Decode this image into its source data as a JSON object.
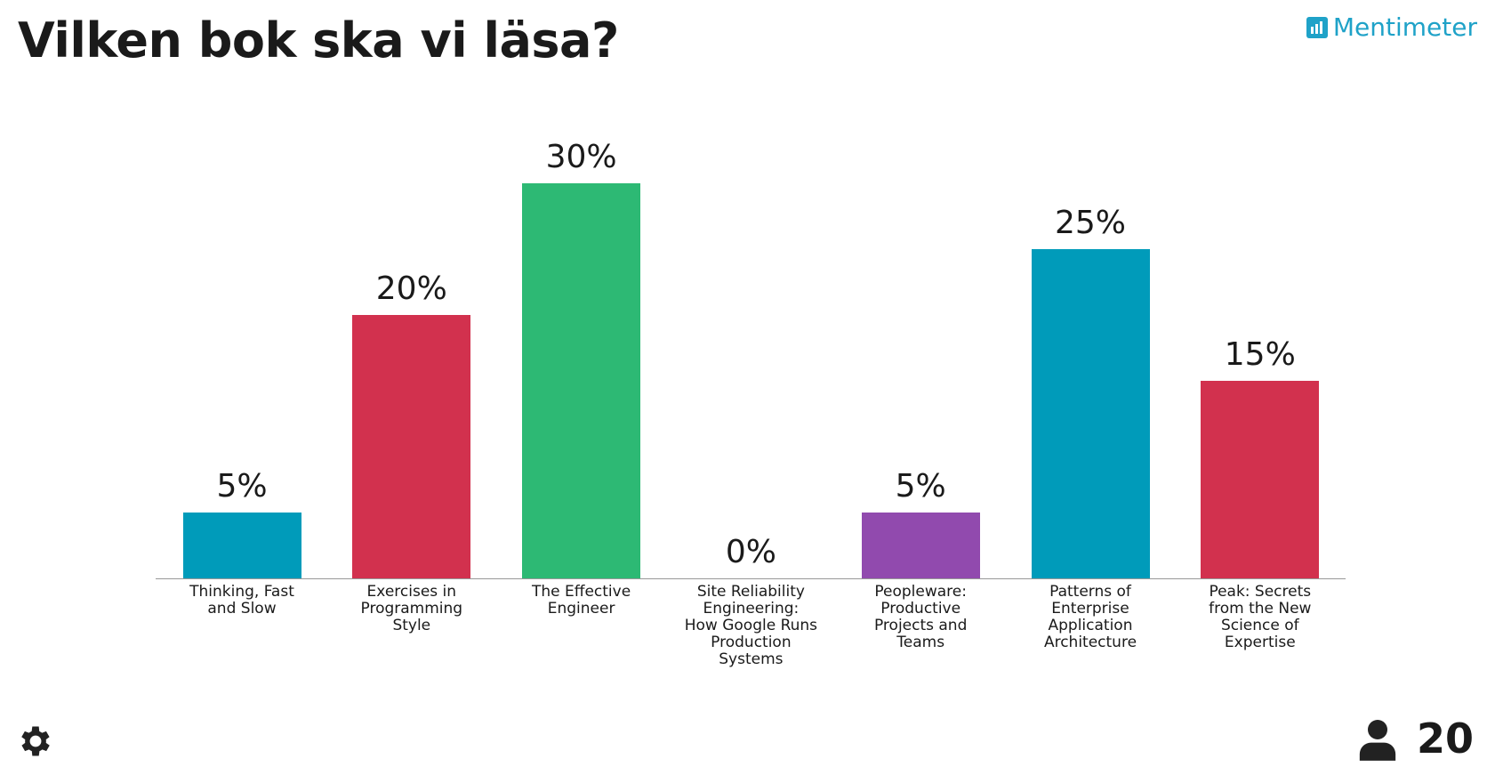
{
  "header": {
    "brand": "Mentimeter"
  },
  "footer": {
    "participants": 20
  },
  "chart_data": {
    "type": "bar",
    "title": "Vilken bok ska vi läsa?",
    "categories": [
      "Thinking, Fast and Slow",
      "Exercises in Programming Style",
      "The Effective Engineer",
      "Site Reliability Engineering: How Google Runs Production Systems",
      "Peopleware: Productive Projects and Teams",
      "Patterns of Enterprise Application Architecture",
      "Peak: Secrets from the New Science of Expertise"
    ],
    "values": [
      5,
      20,
      30,
      0,
      5,
      25,
      15
    ],
    "value_labels": [
      "5%",
      "20%",
      "30%",
      "0%",
      "5%",
      "25%",
      "15%"
    ],
    "colors": [
      "#009bba",
      "#d2314e",
      "#2db974",
      "#2db974",
      "#914aae",
      "#009bba",
      "#d2314e"
    ]
  }
}
